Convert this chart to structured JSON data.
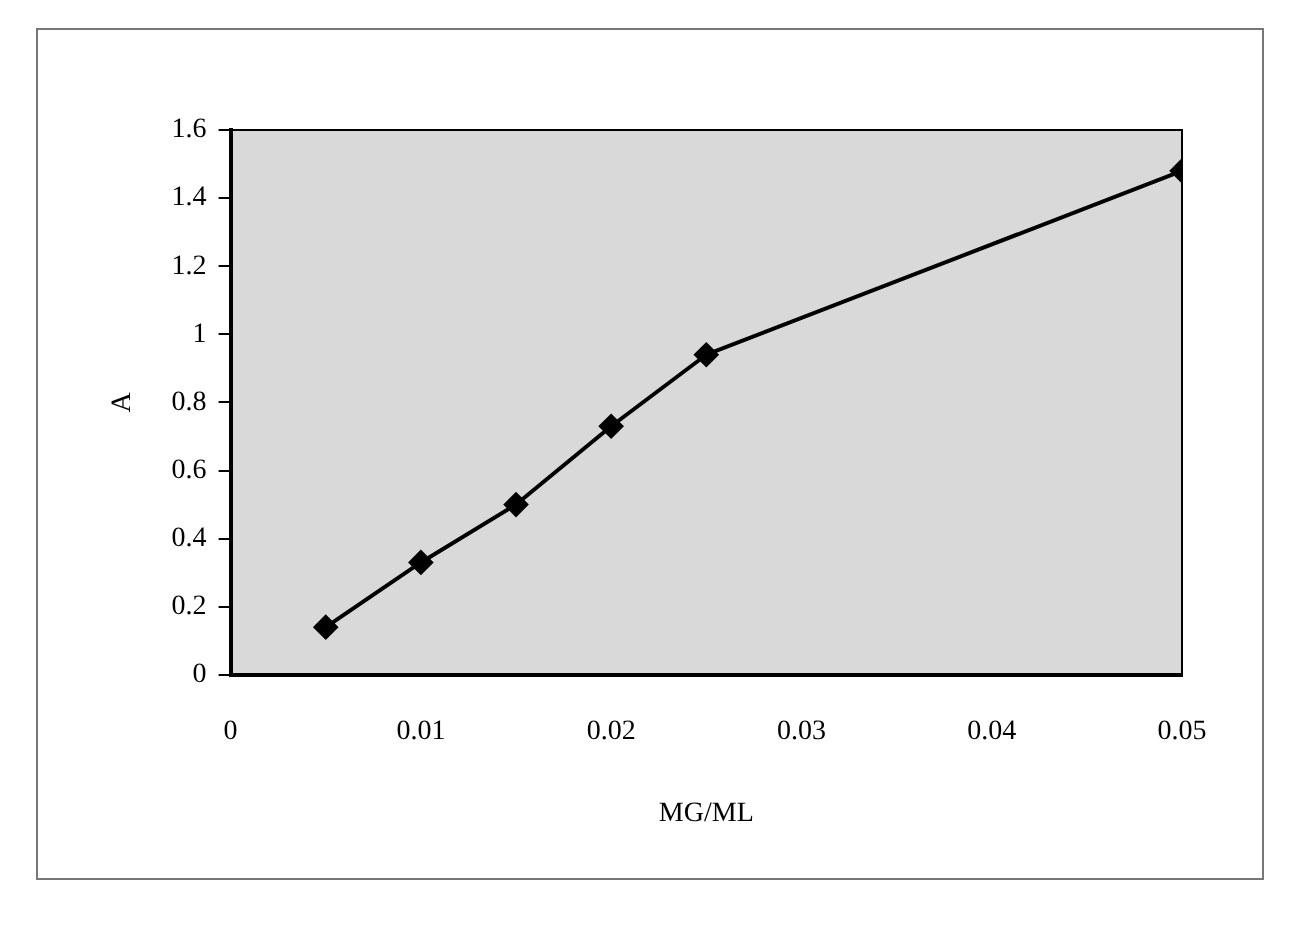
{
  "chart_data": {
    "type": "line",
    "xlabel": "MG/ML",
    "ylabel": "A",
    "x": [
      0.005,
      0.01,
      0.015,
      0.02,
      0.025,
      0.05
    ],
    "series": [
      {
        "color": "#000000",
        "values": [
          0.14,
          0.33,
          0.5,
          0.73,
          0.94,
          1.48
        ]
      }
    ],
    "xlim": [
      0,
      0.05
    ],
    "xticks": [
      0,
      0.01,
      0.02,
      0.03,
      0.04,
      0.05
    ],
    "ylim": [
      0,
      1.6
    ],
    "yticks": [
      0,
      0.2,
      0.4,
      0.6,
      0.8,
      1,
      1.2,
      1.4,
      1.6
    ],
    "marker": "diamond",
    "line_style": "solid",
    "grid": false,
    "legend": false
  }
}
